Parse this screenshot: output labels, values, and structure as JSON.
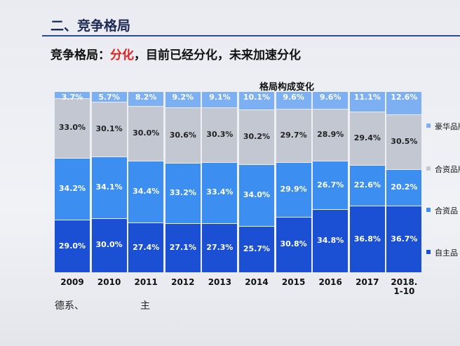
{
  "chart_data": {
    "type": "stacked-bar",
    "title": "二、竞争格局",
    "subtitle_parts": [
      "竞争格局：",
      "分化",
      "，目前已经分化，未来加速分化"
    ],
    "chart_title": "格局构成变化",
    "categories": [
      "2009",
      "2010",
      "2011",
      "2012",
      "2013",
      "2014",
      "2015",
      "2016",
      "2017",
      "2018.\n1-10"
    ],
    "series": [
      {
        "name": "自主品",
        "color": "#1b4fd4",
        "values": [
          29.0,
          30.0,
          27.4,
          27.1,
          27.3,
          25.7,
          30.8,
          34.8,
          36.8,
          36.7
        ],
        "value_labels": [
          "29.0%",
          "30.0%",
          "27.4%",
          "27.1%",
          "27.3%",
          "25.7%",
          "30.8%",
          "34.8%",
          "36.8%",
          "36.7%"
        ]
      },
      {
        "name": "合资品",
        "color": "#3c8ff0",
        "values": [
          34.2,
          34.1,
          34.4,
          33.2,
          33.4,
          34.0,
          29.9,
          26.7,
          22.6,
          20.2
        ],
        "value_labels": [
          "34.2%",
          "34.1%",
          "34.4%",
          "33.2%",
          "33.4%",
          "34.0%",
          "29.9%",
          "26.7%",
          "22.6%",
          "20.2%"
        ]
      },
      {
        "name": "合资品牌",
        "color": "#c3c7d2",
        "values": [
          33.0,
          30.1,
          30.0,
          30.6,
          30.3,
          30.2,
          29.7,
          28.9,
          29.4,
          30.5
        ],
        "value_labels": [
          "33.0%",
          "30.1%",
          "30.0%",
          "30.6%",
          "30.3%",
          "30.2%",
          "29.7%",
          "28.9%",
          "29.4%",
          "30.5%"
        ]
      },
      {
        "name": "豪华品牌",
        "color": "#7db0f2",
        "values": [
          3.7,
          5.7,
          8.2,
          9.2,
          9.1,
          10.1,
          9.6,
          9.6,
          11.1,
          12.6
        ],
        "value_labels": [
          "3.7%",
          "5.7%",
          "8.2%",
          "9.2%",
          "9.1%",
          "10.1%",
          "9.6%",
          "9.6%",
          "11.1%",
          "12.6%"
        ]
      }
    ],
    "footnote": [
      "德系、",
      "主"
    ]
  }
}
